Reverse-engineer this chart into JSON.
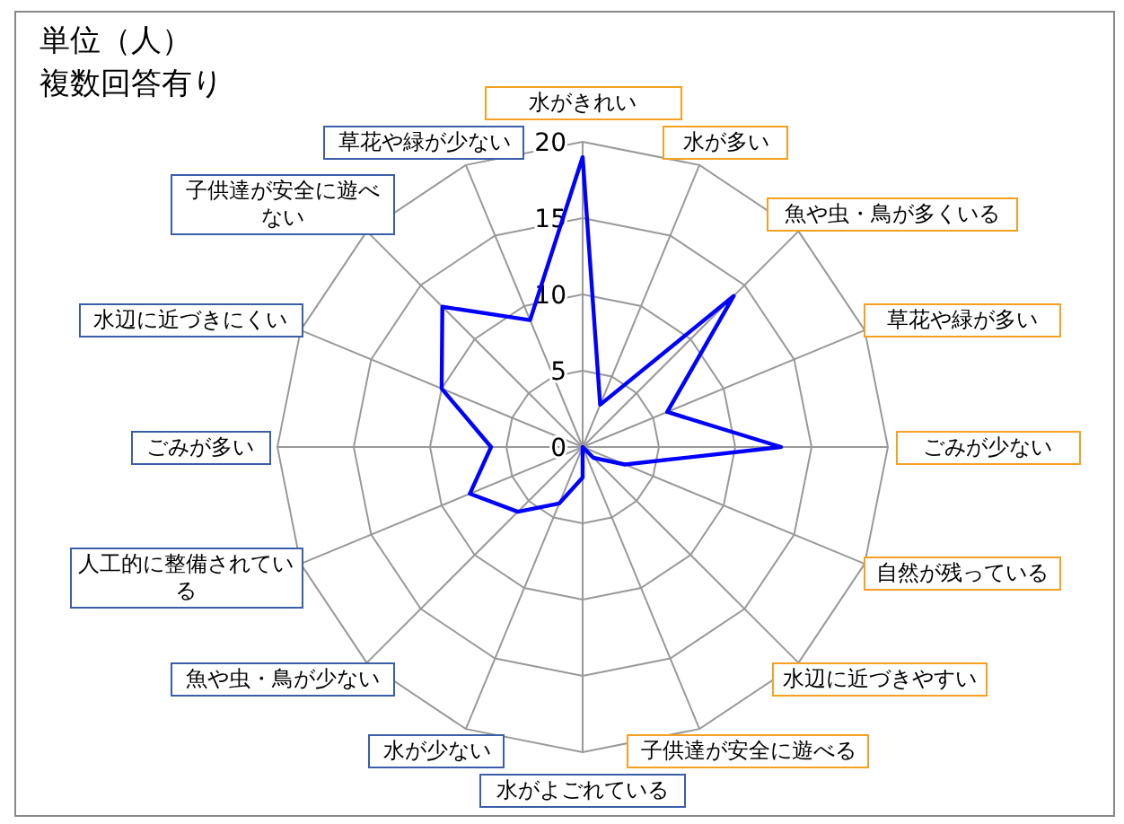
{
  "chart_data": {
    "type": "radar",
    "title": "単位（人）",
    "subtitle": "複数回答有り",
    "categories": [
      "水がきれい",
      "水が多い",
      "魚や虫・鳥が多くいる",
      "草花や緑が多い",
      "ごみが少ない",
      "自然が残っている",
      "水辺に近づきやすい",
      "子供達が安全に遊べる",
      "水がよごれている",
      "水が少ない",
      "魚や虫・鳥が少ない",
      "人工的に整備されている",
      "ごみが多い",
      "水辺に近づきにくい",
      "子供達が安全に遊べない",
      "草花や緑が少ない"
    ],
    "series": [
      {
        "color": "#0000ff",
        "values": [
          19,
          3,
          14,
          6,
          13,
          3,
          1,
          0,
          2,
          4,
          6,
          8,
          6,
          10,
          13,
          9
        ]
      }
    ],
    "ylim": [
      0,
      20
    ],
    "yticks": [
      0,
      5,
      10,
      15,
      20
    ],
    "grid": true
  }
}
